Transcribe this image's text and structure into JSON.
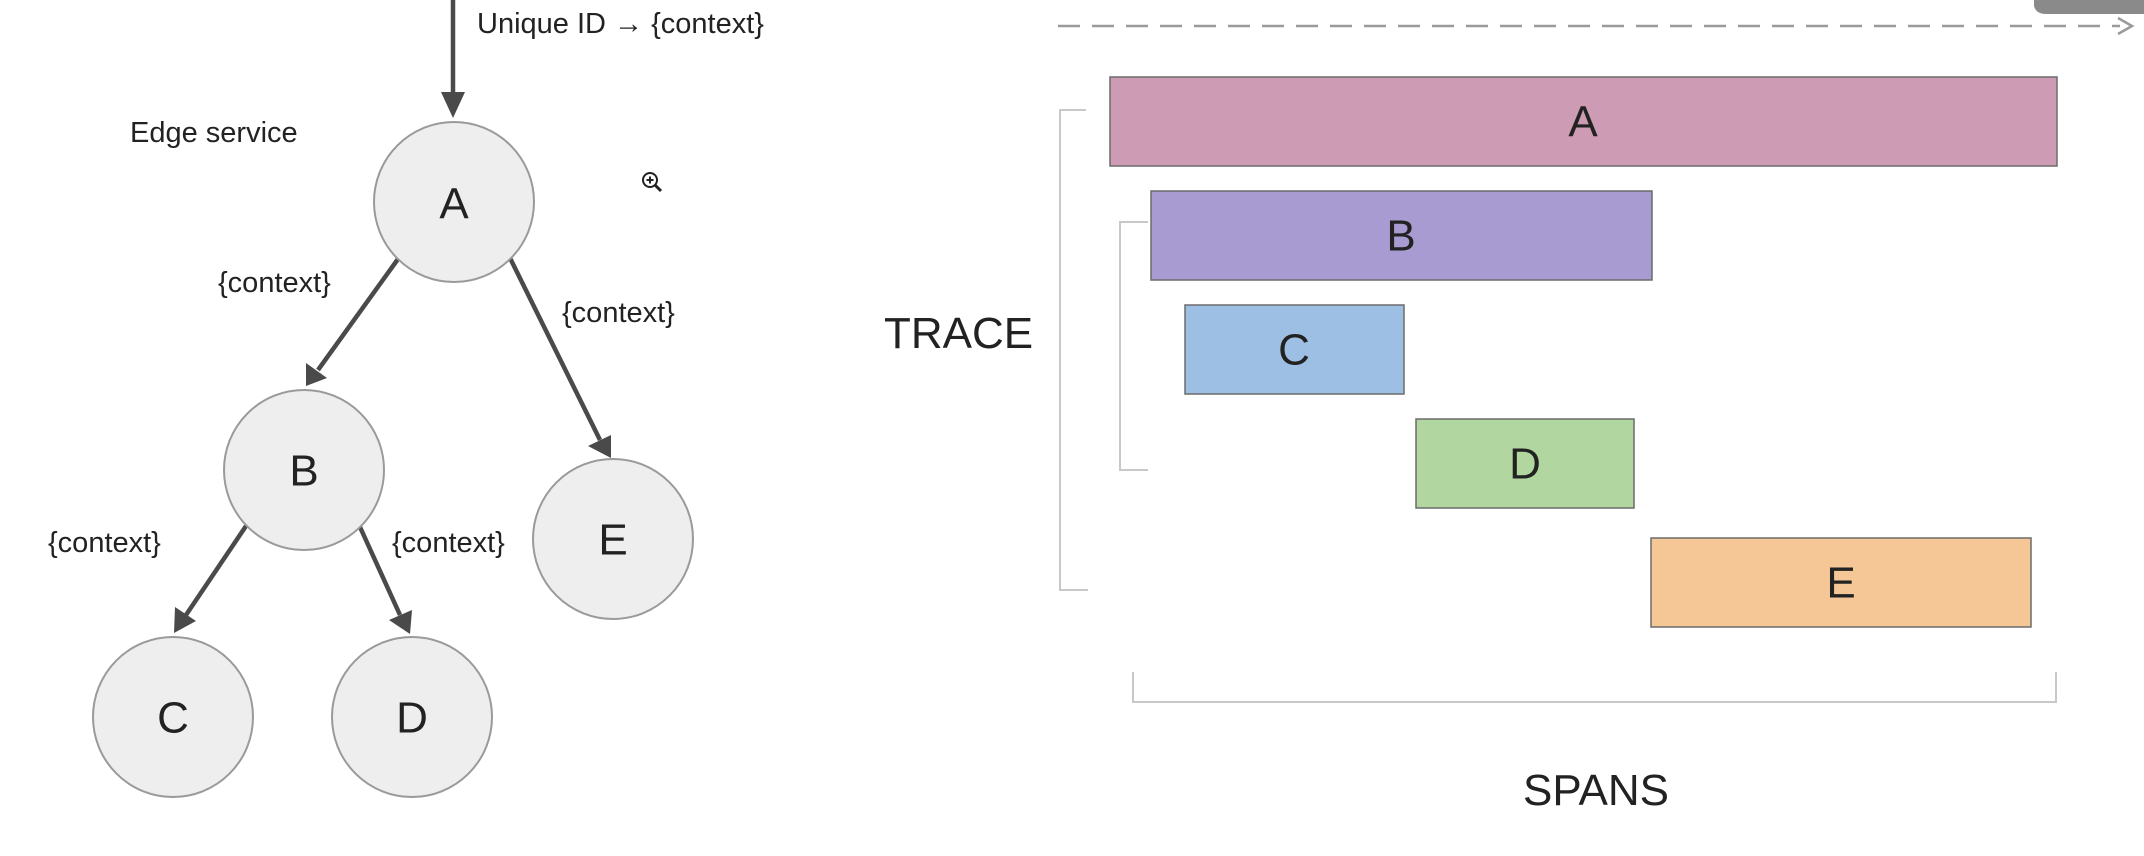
{
  "tree": {
    "incoming_label": "Unique ID → {context}",
    "edge_service_label": "Edge service",
    "nodes": [
      {
        "id": "A",
        "label": "A"
      },
      {
        "id": "B",
        "label": "B"
      },
      {
        "id": "C",
        "label": "C"
      },
      {
        "id": "D",
        "label": "D"
      },
      {
        "id": "E",
        "label": "E"
      }
    ],
    "edges": [
      {
        "from": "A",
        "to": "B",
        "label": "{context}"
      },
      {
        "from": "A",
        "to": "E",
        "label": "{context}"
      },
      {
        "from": "B",
        "to": "C",
        "label": "{context}"
      },
      {
        "from": "B",
        "to": "D",
        "label": "{context}"
      }
    ]
  },
  "timeline": {
    "trace_label": "TRACE",
    "spans_label": "SPANS",
    "spans": [
      {
        "label": "A",
        "color": "#cd9bb3"
      },
      {
        "label": "B",
        "color": "#a79bd1"
      },
      {
        "label": "C",
        "color": "#9cbfe3"
      },
      {
        "label": "D",
        "color": "#b2d6a0"
      },
      {
        "label": "E",
        "color": "#f5c696"
      }
    ]
  },
  "icons": {
    "zoom": "zoom-in-icon"
  }
}
